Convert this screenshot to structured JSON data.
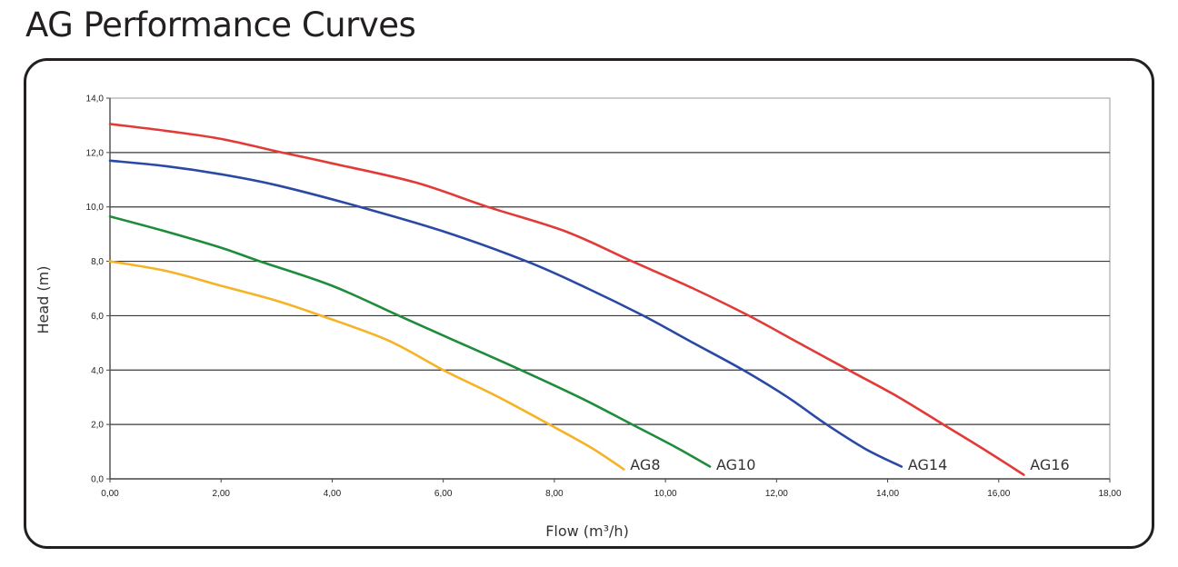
{
  "page": {
    "title": "AG Performance Curves"
  },
  "chart_data": {
    "type": "line",
    "title": "AG Performance Curves",
    "xlabel": "Flow (m³/h)",
    "ylabel": "Head (m)",
    "xlim": [
      0,
      18
    ],
    "ylim": [
      0,
      14
    ],
    "x_ticks": [
      0,
      2,
      4,
      6,
      8,
      10,
      12,
      14,
      16,
      18
    ],
    "x_tick_labels": [
      "0,00",
      "2,00",
      "4,00",
      "6,00",
      "8,00",
      "10,00",
      "12,00",
      "14,00",
      "16,00",
      "18,00"
    ],
    "y_ticks": [
      0,
      2,
      4,
      6,
      8,
      10,
      12,
      14
    ],
    "y_tick_labels": [
      "0,0",
      "2,0",
      "4,0",
      "6,0",
      "8,0",
      "10,0",
      "12,0",
      "14,0"
    ],
    "grid": "horizontal",
    "legend": "inline labels at curve ends",
    "series": [
      {
        "name": "AG8",
        "color": "#f5b325",
        "x": [
          0,
          1,
          2,
          3,
          3.8,
          5,
          6,
          7,
          8,
          8.7,
          9.25
        ],
        "y": [
          8.0,
          7.65,
          7.1,
          6.55,
          6.0,
          5.1,
          4.0,
          3.0,
          1.9,
          1.1,
          0.35
        ]
      },
      {
        "name": "AG10",
        "color": "#1e8c3a",
        "x": [
          0,
          1,
          2,
          2.7,
          4,
          5.2,
          6.3,
          7.4,
          8.5,
          9.4,
          10.2,
          10.8
        ],
        "y": [
          9.65,
          9.1,
          8.5,
          8.0,
          7.1,
          6.0,
          5.0,
          4.0,
          2.95,
          2.0,
          1.15,
          0.45
        ]
      },
      {
        "name": "AG14",
        "color": "#2a49a5",
        "x": [
          0,
          1,
          2,
          3,
          4.5,
          6,
          7.5,
          8.6,
          9.6,
          10.5,
          11.4,
          12.2,
          12.9,
          13.6,
          14.25
        ],
        "y": [
          11.7,
          11.5,
          11.2,
          10.8,
          10.0,
          9.1,
          8.0,
          7.0,
          6.0,
          5.0,
          4.0,
          3.0,
          2.0,
          1.1,
          0.45
        ]
      },
      {
        "name": "AG16",
        "color": "#e23a36",
        "x": [
          0,
          1,
          2,
          3.1,
          4,
          5.5,
          6.8,
          8.2,
          9.4,
          10.5,
          11.5,
          12.4,
          13.3,
          14.2,
          15.0,
          15.8,
          16.45
        ],
        "y": [
          13.05,
          12.8,
          12.5,
          12.0,
          11.6,
          10.9,
          10.0,
          9.1,
          8.0,
          7.0,
          6.0,
          5.0,
          4.0,
          3.0,
          2.0,
          1.0,
          0.15
        ]
      }
    ]
  }
}
